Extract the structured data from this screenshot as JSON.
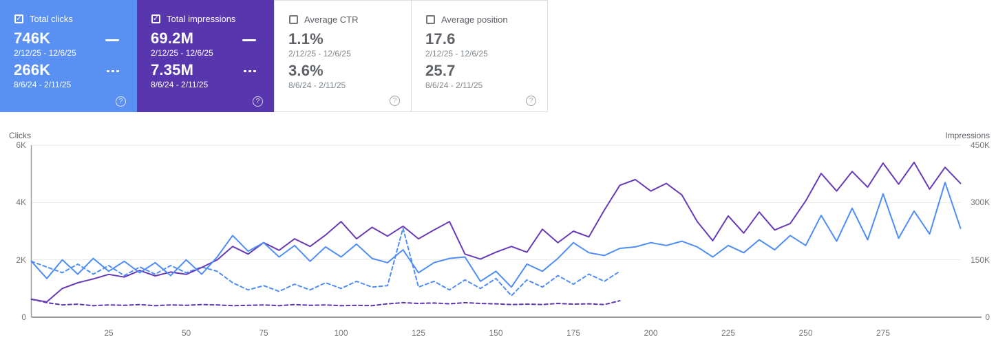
{
  "icons": {
    "help": "?",
    "check": "✓"
  },
  "cards": [
    {
      "label": "Total clicks",
      "checked": true,
      "color": "#5a90f2",
      "value_current": "746K",
      "range_current": "2/12/25 - 12/6/25",
      "value_previous": "266K",
      "range_previous": "8/6/24 - 2/11/25"
    },
    {
      "label": "Total impressions",
      "checked": true,
      "color": "#5736ae",
      "value_current": "69.2M",
      "range_current": "2/12/25 - 12/6/25",
      "value_previous": "7.35M",
      "range_previous": "8/6/24 - 2/11/25"
    },
    {
      "label": "Average CTR",
      "checked": false,
      "color": null,
      "value_current": "1.1%",
      "range_current": "2/12/25 - 12/6/25",
      "value_previous": "3.6%",
      "range_previous": "8/6/24 - 2/11/25"
    },
    {
      "label": "Average position",
      "checked": false,
      "color": null,
      "value_current": "17.6",
      "range_current": "2/12/25 - 12/6/25",
      "value_previous": "25.7",
      "range_previous": "8/6/24 - 2/11/25"
    }
  ],
  "chart_data": {
    "type": "line",
    "grid": "horizontal",
    "left_axis": {
      "title": "Clicks",
      "max": 6000,
      "ticks": [
        {
          "label": "0",
          "value": 0
        },
        {
          "label": "2K",
          "value": 2000
        },
        {
          "label": "4K",
          "value": 4000
        },
        {
          "label": "6K",
          "value": 6000
        }
      ]
    },
    "right_axis": {
      "title": "Impressions",
      "max": 450000,
      "ticks": [
        {
          "label": "0",
          "value": 0
        },
        {
          "label": "150K",
          "value": 150000
        },
        {
          "label": "300K",
          "value": 300000
        },
        {
          "label": "450K",
          "value": 450000
        }
      ]
    },
    "x_axis": {
      "max": 300,
      "ticks": [
        25,
        50,
        75,
        100,
        125,
        150,
        175,
        200,
        225,
        250,
        275
      ]
    },
    "series": [
      {
        "name": "Impressions 8/6/24 - 2/11/25",
        "axis": "right",
        "color": "#5b35b0",
        "dash": true,
        "x_step": 5,
        "values": [
          47000,
          38000,
          32000,
          34000,
          30000,
          32000,
          31000,
          33000,
          30000,
          32000,
          31000,
          33000,
          32000,
          30000,
          31000,
          32000,
          30000,
          33000,
          31000,
          32000,
          30000,
          31000,
          30000,
          35000,
          38000,
          36000,
          37000,
          35000,
          38000,
          36000,
          35000,
          33000,
          34000,
          33000,
          36000,
          34000,
          35000,
          33000,
          43000
        ]
      },
      {
        "name": "Clicks 8/6/24 - 2/11/25",
        "axis": "left",
        "color": "#4e8df6",
        "dash": true,
        "x_step": 5,
        "values": [
          1950,
          1750,
          1550,
          1850,
          1500,
          1800,
          1450,
          1750,
          1500,
          1800,
          1550,
          1750,
          1600,
          1200,
          950,
          1100,
          900,
          1150,
          950,
          1200,
          1000,
          1250,
          1050,
          1100,
          3100,
          1050,
          1250,
          950,
          1300,
          1000,
          1350,
          750,
          1300,
          1050,
          1450,
          1150,
          1500,
          1250,
          1600
        ]
      },
      {
        "name": "Impressions 2/12/25 - 12/6/25",
        "axis": "right",
        "color": "#673ab7",
        "dash": false,
        "x_step": 5,
        "values": [
          47000,
          40000,
          75000,
          90000,
          100000,
          112000,
          105000,
          122000,
          108000,
          118000,
          112000,
          130000,
          150000,
          185000,
          165000,
          195000,
          175000,
          205000,
          185000,
          215000,
          250000,
          205000,
          235000,
          212000,
          238000,
          205000,
          228000,
          250000,
          165000,
          152000,
          170000,
          185000,
          170000,
          230000,
          195000,
          225000,
          210000,
          280000,
          345000,
          360000,
          330000,
          350000,
          320000,
          250000,
          200000,
          265000,
          220000,
          275000,
          228000,
          245000,
          304000,
          376000,
          330000,
          381000,
          340000,
          403000,
          348000,
          405000,
          335000,
          392000,
          350000
        ]
      },
      {
        "name": "Clicks 2/12/25 - 12/6/25",
        "axis": "left",
        "color": "#4e8df6",
        "dash": false,
        "x_step": 5,
        "values": [
          1950,
          1350,
          2000,
          1500,
          2050,
          1600,
          1950,
          1550,
          1900,
          1450,
          2000,
          1500,
          2100,
          2850,
          2300,
          2600,
          2100,
          2500,
          1950,
          2450,
          2100,
          2550,
          2050,
          1900,
          2350,
          1550,
          1900,
          2050,
          2100,
          1250,
          1600,
          1050,
          1850,
          1600,
          2050,
          2600,
          2250,
          2150,
          2400,
          2450,
          2600,
          2500,
          2650,
          2450,
          2100,
          2500,
          2250,
          2700,
          2350,
          2850,
          2500,
          3550,
          2650,
          3800,
          2700,
          4300,
          2750,
          3700,
          2900,
          4700,
          3100
        ]
      }
    ]
  }
}
